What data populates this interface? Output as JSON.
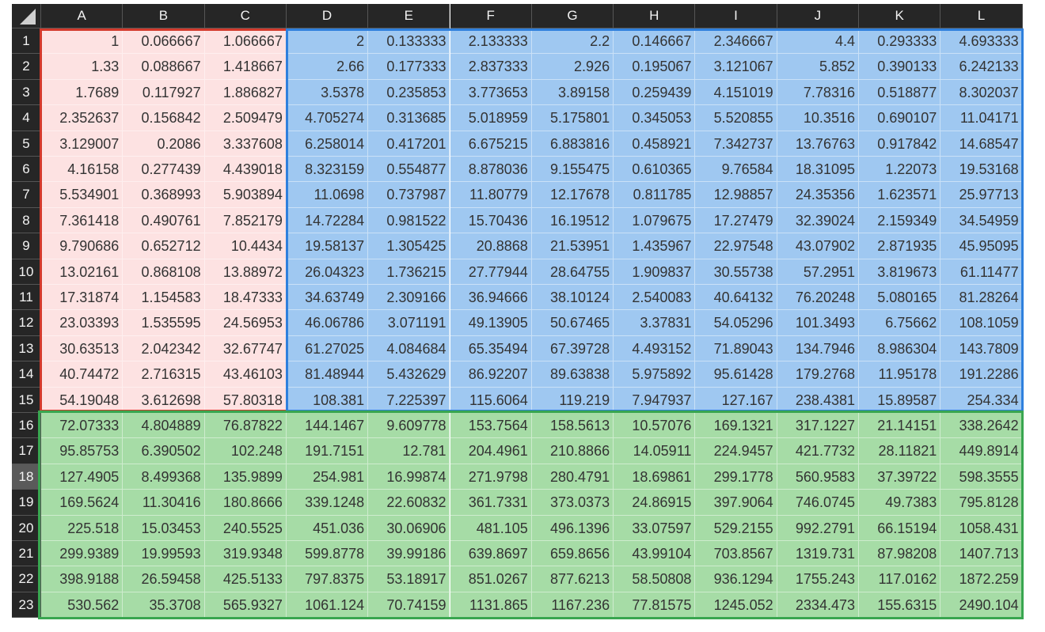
{
  "columns": [
    "A",
    "B",
    "C",
    "D",
    "E",
    "F",
    "G",
    "H",
    "I",
    "J",
    "K",
    "L"
  ],
  "row_numbers": [
    1,
    2,
    3,
    4,
    5,
    6,
    7,
    8,
    9,
    10,
    11,
    12,
    13,
    14,
    15,
    16,
    17,
    18,
    19,
    20,
    21,
    22,
    23
  ],
  "cells": [
    [
      1,
      0.066667,
      1.066667,
      2,
      0.133333,
      2.133333,
      2.2,
      0.146667,
      2.346667,
      4.4,
      0.293333,
      4.693333
    ],
    [
      1.33,
      0.088667,
      1.418667,
      2.66,
      0.177333,
      2.837333,
      2.926,
      0.195067,
      3.121067,
      5.852,
      0.390133,
      6.242133
    ],
    [
      1.7689,
      0.117927,
      1.886827,
      3.5378,
      0.235853,
      3.773653,
      3.89158,
      0.259439,
      4.151019,
      7.78316,
      0.518877,
      8.302037
    ],
    [
      2.352637,
      0.156842,
      2.509479,
      4.705274,
      0.313685,
      5.018959,
      5.175801,
      0.345053,
      5.520855,
      10.3516,
      0.690107,
      11.04171
    ],
    [
      3.129007,
      0.2086,
      3.337608,
      6.258014,
      0.417201,
      6.675215,
      6.883816,
      0.458921,
      7.342737,
      13.76763,
      0.917842,
      14.68547
    ],
    [
      4.16158,
      0.277439,
      4.439018,
      8.323159,
      0.554877,
      8.878036,
      9.155475,
      0.610365,
      9.76584,
      18.31095,
      1.22073,
      19.53168
    ],
    [
      5.534901,
      0.368993,
      5.903894,
      11.0698,
      0.737987,
      11.80779,
      12.17678,
      0.811785,
      12.98857,
      24.35356,
      1.623571,
      25.97713
    ],
    [
      7.361418,
      0.490761,
      7.852179,
      14.72284,
      0.981522,
      15.70436,
      16.19512,
      1.079675,
      17.27479,
      32.39024,
      2.159349,
      34.54959
    ],
    [
      9.790686,
      0.652712,
      10.4434,
      19.58137,
      1.305425,
      20.8868,
      21.53951,
      1.435967,
      22.97548,
      43.07902,
      2.871935,
      45.95095
    ],
    [
      13.02161,
      0.868108,
      13.88972,
      26.04323,
      1.736215,
      27.77944,
      28.64755,
      1.909837,
      30.55738,
      57.2951,
      3.819673,
      61.11477
    ],
    [
      17.31874,
      1.154583,
      18.47333,
      34.63749,
      2.309166,
      36.94666,
      38.10124,
      2.540083,
      40.64132,
      76.20248,
      5.080165,
      81.28264
    ],
    [
      23.03393,
      1.535595,
      24.56953,
      46.06786,
      3.071191,
      49.13905,
      50.67465,
      3.37831,
      54.05296,
      101.3493,
      6.75662,
      108.1059
    ],
    [
      30.63513,
      2.042342,
      32.67747,
      61.27025,
      4.084684,
      65.35494,
      67.39728,
      4.493152,
      71.89043,
      134.7946,
      8.986304,
      143.7809
    ],
    [
      40.74472,
      2.716315,
      43.46103,
      81.48944,
      5.432629,
      86.92207,
      89.63838,
      5.975892,
      95.61428,
      179.2768,
      11.95178,
      191.2286
    ],
    [
      54.19048,
      3.612698,
      57.80318,
      108.381,
      7.225397,
      115.6064,
      119.219,
      7.947937,
      127.167,
      238.4381,
      15.89587,
      254.334
    ],
    [
      72.07333,
      4.804889,
      76.87822,
      144.1467,
      9.609778,
      153.7564,
      158.5613,
      10.57076,
      169.1321,
      317.1227,
      21.14151,
      338.2642
    ],
    [
      95.85753,
      6.390502,
      102.248,
      191.7151,
      12.781,
      204.4961,
      210.8866,
      14.05911,
      224.9457,
      421.7732,
      28.11821,
      449.8914
    ],
    [
      127.4905,
      8.499368,
      135.9899,
      254.981,
      16.99874,
      271.9798,
      280.4791,
      18.69861,
      299.1778,
      560.9583,
      37.39722,
      598.3555
    ],
    [
      169.5624,
      11.30416,
      180.8666,
      339.1248,
      22.60832,
      361.7331,
      373.0373,
      24.86915,
      397.9064,
      746.0745,
      49.7383,
      795.8128
    ],
    [
      225.518,
      15.03453,
      240.5525,
      451.036,
      30.06906,
      481.105,
      496.1396,
      33.07597,
      529.2155,
      992.2791,
      66.15194,
      1058.431
    ],
    [
      299.9389,
      19.99593,
      319.9348,
      599.8778,
      39.99186,
      639.8697,
      659.8656,
      43.99104,
      703.8567,
      1319.731,
      87.98208,
      1407.713
    ],
    [
      398.9188,
      26.59458,
      425.5133,
      797.8375,
      53.18917,
      851.0267,
      877.6213,
      58.50808,
      936.1294,
      1755.243,
      117.0162,
      1872.259
    ],
    [
      530.562,
      35.3708,
      565.9327,
      1061.124,
      70.74159,
      1131.865,
      1167.236,
      77.81575,
      1245.052,
      2334.473,
      155.6315,
      2490.104
    ]
  ]
}
